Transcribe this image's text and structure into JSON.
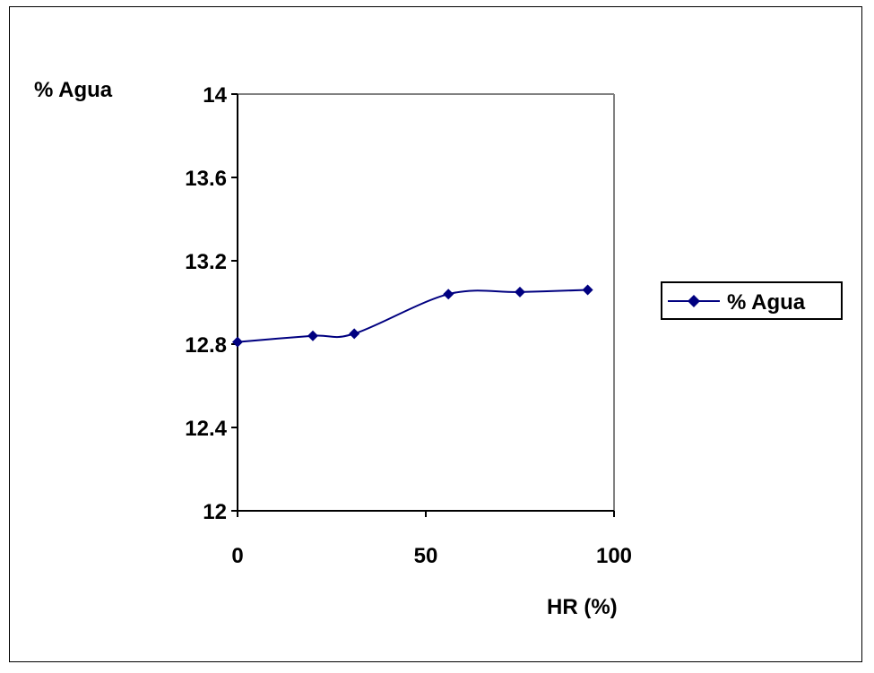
{
  "chart_data": {
    "type": "line",
    "title": "",
    "xlabel": "HR (%)",
    "ylabel": "% Agua",
    "xlim": [
      0,
      100
    ],
    "ylim": [
      12,
      14
    ],
    "x_ticks": [
      0,
      50,
      100
    ],
    "y_ticks": [
      12,
      12.4,
      12.8,
      13.2,
      13.6,
      14
    ],
    "x_tick_labels": [
      "0",
      "50",
      "100"
    ],
    "y_tick_labels": [
      "12",
      "12.4",
      "12.8",
      "13.2",
      "13.6",
      "14"
    ],
    "grid": false,
    "legend": "right",
    "smooth": true,
    "marker": "diamond",
    "series": [
      {
        "name": "% Agua",
        "color": "#000080",
        "x": [
          0,
          20,
          31,
          56,
          75,
          93
        ],
        "y": [
          12.81,
          12.84,
          12.85,
          13.04,
          13.05,
          13.06
        ]
      }
    ]
  }
}
